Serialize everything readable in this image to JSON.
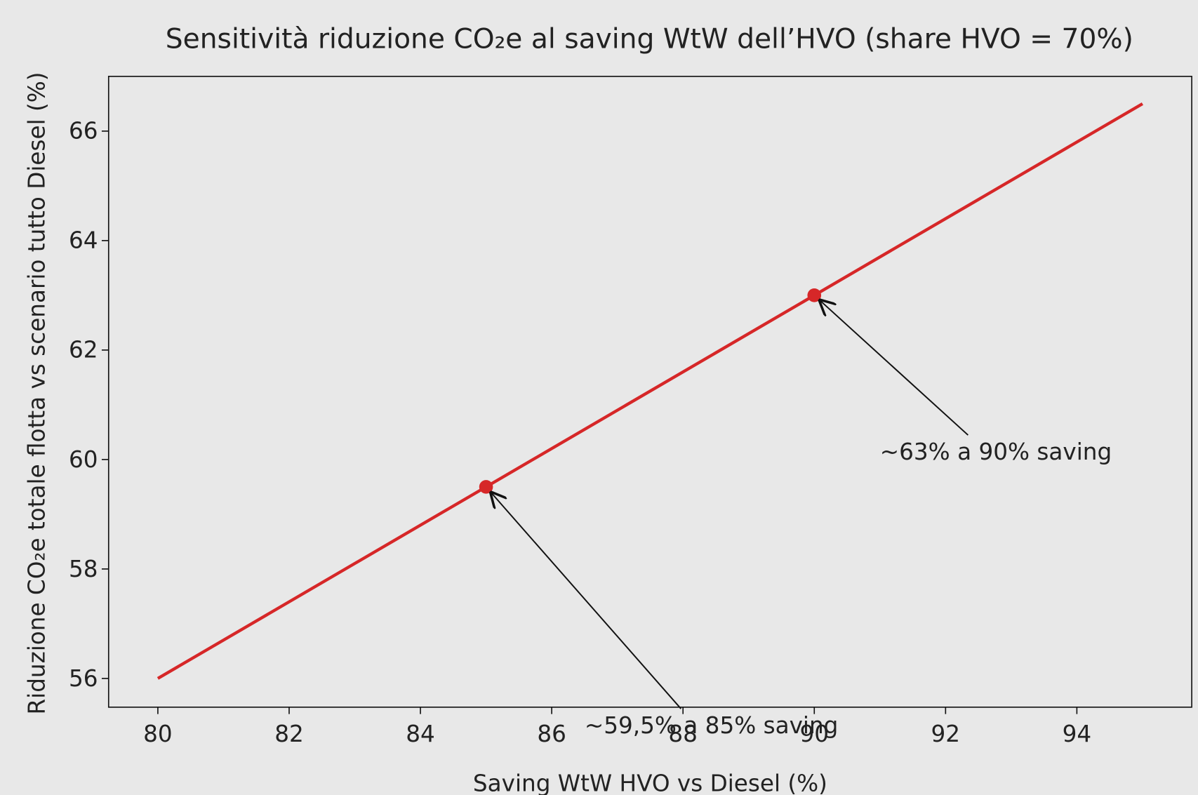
{
  "chart_data": {
    "type": "line",
    "title": "Sensitività riduzione CO₂e al saving WtW dell’HVO (share HVO = 70%)",
    "x_label": "Saving WtW HVO vs Diesel (%)",
    "y_label": "Riduzione CO₂e totale flotta vs scenario tutto Diesel (%)",
    "x": [
      80,
      85,
      90,
      95
    ],
    "series": [
      {
        "color": "#d62728",
        "values": [
          56,
          59.5,
          63,
          66.5
        ]
      }
    ],
    "markers": {
      "color": "#d62728",
      "x": [
        85,
        90
      ],
      "values": [
        59.5,
        63
      ]
    },
    "annotations": [
      {
        "text": "~59,5% a 85% saving",
        "x": 85,
        "y": 59.5,
        "text_x": 86.5,
        "text_y": 55
      },
      {
        "text": "~63% a 90% saving",
        "x": 90,
        "y": 63,
        "text_x": 91,
        "text_y": 60
      }
    ],
    "xlim": [
      79.25,
      95.75
    ],
    "ylim": [
      55.475,
      67.0
    ],
    "xticks": [
      80,
      82,
      84,
      86,
      88,
      90,
      92,
      94
    ],
    "yticks": [
      56,
      58,
      60,
      62,
      64,
      66
    ],
    "grid": false
  }
}
